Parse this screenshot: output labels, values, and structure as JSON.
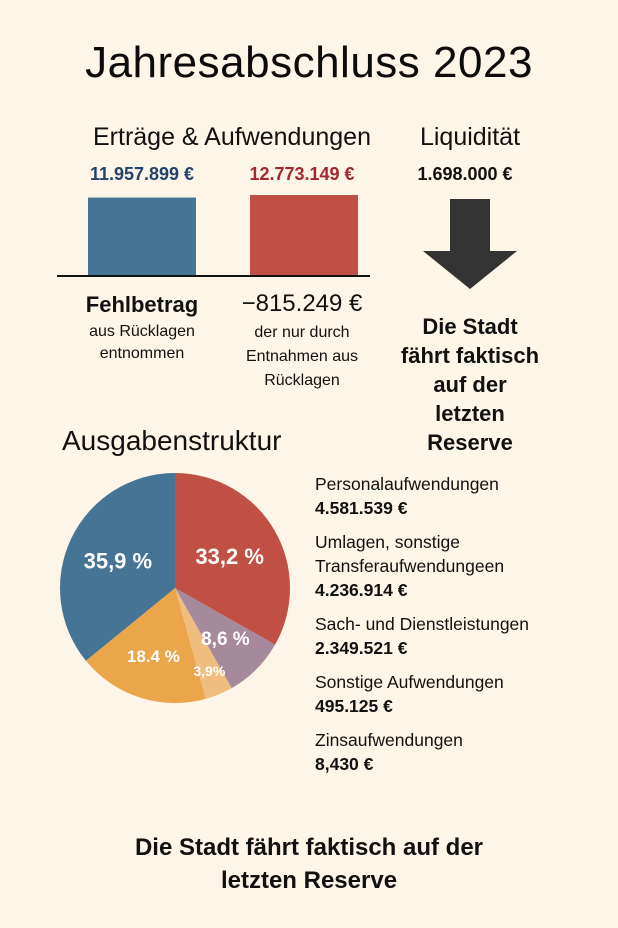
{
  "title": "Jahresabschluss 2023",
  "bars_section": {
    "title": "Erträge & Aufwendungen",
    "deficit_label": "Fehlbetrag",
    "deficit_sub": "aus Rücklagen entnommen",
    "deficit_value": "−815.249 €",
    "deficit_note": "der nur durch Entnahmen aus Rücklagen"
  },
  "liquidity": {
    "title": "Liquidität",
    "value": "1.698.000 €",
    "arrow_icon": "arrow-down-icon",
    "message": "Die Stadt fährt faktisch auf der letzten Reserve"
  },
  "pie_section": {
    "title": "Ausgabenstruktur",
    "legend": [
      {
        "name": "Personalaufwendungen",
        "value": "4.581.539 €"
      },
      {
        "name": "Umlagen, sonstige Transferaufwendungeen",
        "value": "4.236.914 €"
      },
      {
        "name": "Sach- und Dienstleistungen",
        "value": "2.349.521 €"
      },
      {
        "name": "Sonstige Aufwendungen",
        "value": "495.125 €"
      },
      {
        "name": "Zinsaufwendungen",
        "value": "8,430 €"
      }
    ]
  },
  "footer": "Die Stadt fährt faktisch auf der letzten Reserve",
  "colors": {
    "background": "#fdf5e8",
    "blue": "#457494",
    "red": "#c04f44",
    "purple": "#a68a9c",
    "light_orange": "#efbd7e",
    "orange": "#eba54b",
    "arrow": "#333333"
  },
  "chart_data": [
    {
      "type": "bar",
      "title": "Erträge & Aufwendungen",
      "categories": [
        "Erträge",
        "Aufwendungen"
      ],
      "values": [
        11957899,
        12773149
      ],
      "data_labels": [
        "11.957.899 €",
        "12.773.149 €"
      ],
      "colors": [
        "#457494",
        "#c04f44"
      ],
      "label_colors": [
        "#22436b",
        "#a3282d"
      ],
      "ylim": [
        0,
        12773149
      ],
      "xlabel": "",
      "ylabel": "",
      "grid": false
    },
    {
      "type": "pie",
      "title": "Ausgabenstruktur",
      "slices": [
        {
          "label": "33,2 %",
          "value": 33.2,
          "color": "#c04f44"
        },
        {
          "label": "8,6 %",
          "value": 8.6,
          "color": "#a68a9c"
        },
        {
          "label": "3,9%",
          "value": 3.9,
          "color": "#efbd7e"
        },
        {
          "label": "18.4 %",
          "value": 18.4,
          "color": "#eba54b"
        },
        {
          "label": "35,9 %",
          "value": 35.9,
          "color": "#457494"
        }
      ],
      "start": "top",
      "direction": "clockwise",
      "legend": "right"
    }
  ]
}
